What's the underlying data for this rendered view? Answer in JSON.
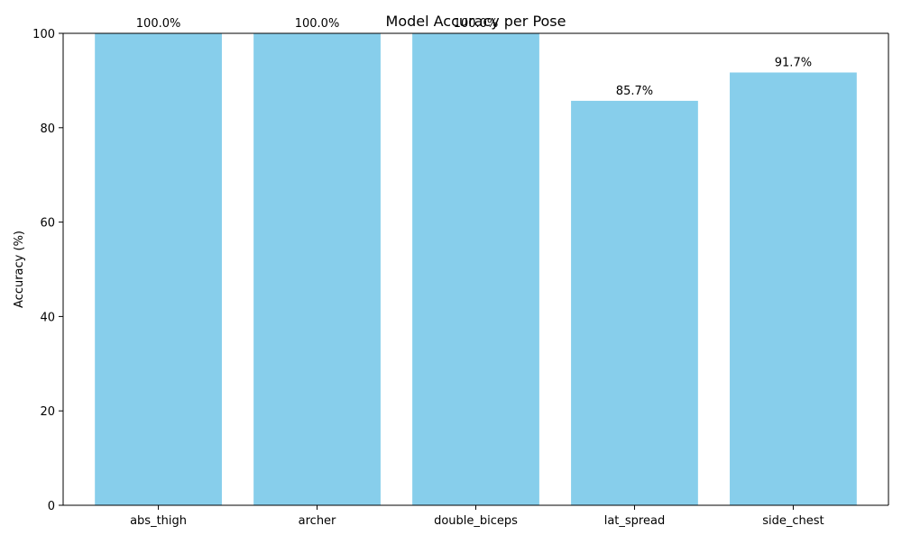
{
  "chart_data": {
    "type": "bar",
    "title": "Model Accuracy per Pose",
    "xlabel": "",
    "ylabel": "Accuracy (%)",
    "categories": [
      "abs_thigh",
      "archer",
      "double_biceps",
      "lat_spread",
      "side_chest"
    ],
    "values": [
      100.0,
      100.0,
      100.0,
      85.7,
      91.7
    ],
    "value_labels": [
      "100.0%",
      "100.0%",
      "100.0%",
      "85.7%",
      "91.7%"
    ],
    "ylim": [
      0,
      100
    ],
    "yticks": [
      0,
      20,
      40,
      60,
      80,
      100
    ],
    "grid": false,
    "legend": "none",
    "bar_color": "#87ceeb"
  }
}
